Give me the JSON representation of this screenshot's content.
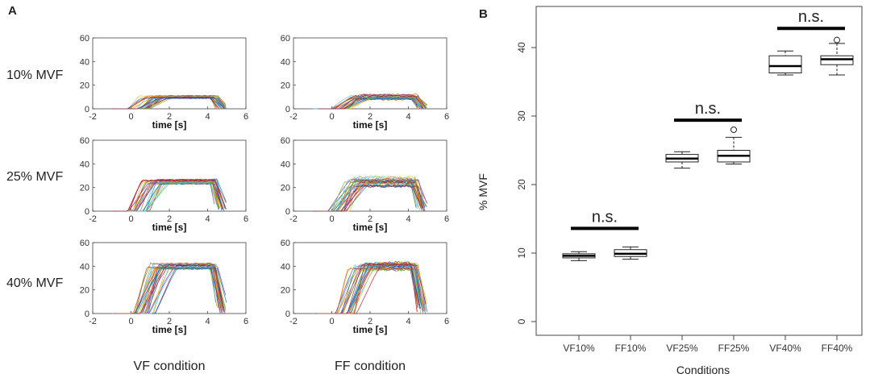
{
  "panels": {
    "a_letter": "A",
    "b_letter": "B"
  },
  "chart_data": [
    {
      "type": "line",
      "panel": "A",
      "title": "",
      "rows": [
        "10% MVF",
        "25% MVF",
        "40% MVF"
      ],
      "columns": [
        "VF condition",
        "FF condition"
      ],
      "xlabel": "time [s]",
      "xlim": [
        -2,
        6
      ],
      "xticks": [
        -2,
        0,
        2,
        4,
        6
      ],
      "ylim": [
        0,
        60
      ],
      "yticks": [
        0,
        20,
        40,
        60
      ],
      "series_description": "Multiple force trials per subplot ramping up from 0 to a plateau at the target level between approx. 1 and 4.5 s, then dropping to 0",
      "subplots": [
        {
          "row": 0,
          "col": 0,
          "plateau": 10,
          "spread": 1.2,
          "n_trials": 28
        },
        {
          "row": 0,
          "col": 1,
          "plateau": 10,
          "spread": 2.5,
          "n_trials": 28
        },
        {
          "row": 1,
          "col": 0,
          "plateau": 25,
          "spread": 2.0,
          "n_trials": 28
        },
        {
          "row": 1,
          "col": 1,
          "plateau": 25,
          "spread": 4.0,
          "n_trials": 28
        },
        {
          "row": 2,
          "col": 0,
          "plateau": 40,
          "spread": 2.5,
          "n_trials": 30
        },
        {
          "row": 2,
          "col": 1,
          "plateau": 40,
          "spread": 3.5,
          "n_trials": 30
        }
      ]
    },
    {
      "type": "box",
      "panel": "B",
      "title": "",
      "xlabel": "Conditions",
      "ylabel": "% MVF",
      "ylim": [
        -2,
        46
      ],
      "yticks": [
        0,
        10,
        20,
        30,
        40
      ],
      "categories": [
        "VF10%",
        "FF10%",
        "VF25%",
        "FF25%",
        "VF40%",
        "FF40%"
      ],
      "boxes": [
        {
          "name": "VF10%",
          "whisker_low": 8.9,
          "q1": 9.3,
          "median": 9.6,
          "q3": 9.9,
          "whisker_high": 10.2,
          "outliers": []
        },
        {
          "name": "FF10%",
          "whisker_low": 9.1,
          "q1": 9.5,
          "median": 9.9,
          "q3": 10.5,
          "whisker_high": 10.9,
          "outliers": []
        },
        {
          "name": "VF25%",
          "whisker_low": 22.4,
          "q1": 23.3,
          "median": 23.8,
          "q3": 24.4,
          "whisker_high": 24.8,
          "outliers": []
        },
        {
          "name": "FF25%",
          "whisker_low": 23.0,
          "q1": 23.3,
          "median": 24.2,
          "q3": 25.0,
          "whisker_high": 26.9,
          "outliers": [
            28.0
          ]
        },
        {
          "name": "VF40%",
          "whisker_low": 36.0,
          "q1": 36.3,
          "median": 37.3,
          "q3": 38.8,
          "whisker_high": 39.5,
          "outliers": []
        },
        {
          "name": "FF40%",
          "whisker_low": 36.0,
          "q1": 37.5,
          "median": 38.3,
          "q3": 38.8,
          "whisker_high": 40.6,
          "outliers": [
            41.1
          ]
        }
      ],
      "annotations": [
        {
          "text": "n.s.",
          "pair": [
            0,
            1
          ],
          "bar_y": 13.6
        },
        {
          "text": "n.s.",
          "pair": [
            2,
            3
          ],
          "bar_y": 29.4
        },
        {
          "text": "n.s.",
          "pair": [
            4,
            5
          ],
          "bar_y": 42.8
        }
      ]
    }
  ]
}
